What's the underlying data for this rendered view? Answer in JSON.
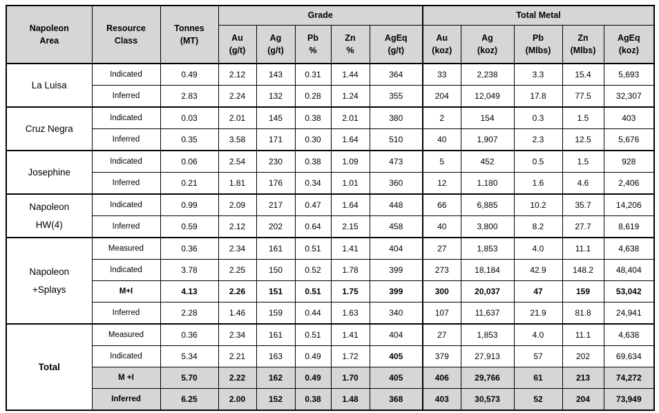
{
  "table": {
    "header": {
      "area": "Napoleon\nArea",
      "resource_class": "Resource\nClass",
      "tonnes": "Tonnes\n(MT)",
      "grade_group": "Grade",
      "total_metal_group": "Total Metal",
      "grade_cols": [
        "Au\n(g/t)",
        "Ag\n(g/t)",
        "Pb\n%",
        "Zn\n%",
        "AgEq\n(g/t)"
      ],
      "metal_cols": [
        "Au\n(koz)",
        "Ag\n(koz)",
        "Pb\n(Mlbs)",
        "Zn\n(Mlbs)",
        "AgEq\n(koz)"
      ]
    },
    "colors": {
      "header_bg": "#d6d6d6",
      "shaded_row_bg": "#d6d6d6",
      "border": "#000000",
      "text": "#000000"
    },
    "groups": [
      {
        "area": "La Luisa",
        "bold": false,
        "rows": [
          {
            "class": "Indicated",
            "bold": false,
            "shaded": false,
            "values": [
              "0.49",
              "2.12",
              "143",
              "0.31",
              "1.44",
              "364",
              "33",
              "2,238",
              "3.3",
              "15.4",
              "5,693"
            ]
          },
          {
            "class": "Inferred",
            "bold": false,
            "shaded": false,
            "values": [
              "2.83",
              "2.24",
              "132",
              "0.28",
              "1.24",
              "355",
              "204",
              "12,049",
              "17.8",
              "77.5",
              "32,307"
            ]
          }
        ]
      },
      {
        "area": "Cruz Negra",
        "bold": false,
        "rows": [
          {
            "class": "Indicated",
            "bold": false,
            "shaded": false,
            "values": [
              "0.03",
              "2.01",
              "145",
              "0.38",
              "2.01",
              "380",
              "2",
              "154",
              "0.3",
              "1.5",
              "403"
            ]
          },
          {
            "class": "Inferred",
            "bold": false,
            "shaded": false,
            "values": [
              "0.35",
              "3.58",
              "171",
              "0.30",
              "1.64",
              "510",
              "40",
              "1,907",
              "2.3",
              "12.5",
              "5,676"
            ]
          }
        ]
      },
      {
        "area": "Josephine",
        "bold": false,
        "rows": [
          {
            "class": "Indicated",
            "bold": false,
            "shaded": false,
            "values": [
              "0.06",
              "2.54",
              "230",
              "0.38",
              "1.09",
              "473",
              "5",
              "452",
              "0.5",
              "1.5",
              "928"
            ]
          },
          {
            "class": "Inferred",
            "bold": false,
            "shaded": false,
            "values": [
              "0.21",
              "1.81",
              "176",
              "0.34",
              "1.01",
              "360",
              "12",
              "1,180",
              "1.6",
              "4.6",
              "2,406"
            ]
          }
        ]
      },
      {
        "area": "Napoleon\nHW(4)",
        "bold": false,
        "rows": [
          {
            "class": "Indicated",
            "bold": false,
            "shaded": false,
            "values": [
              "0.99",
              "2.09",
              "217",
              "0.47",
              "1.64",
              "448",
              "66",
              "6,885",
              "10.2",
              "35.7",
              "14,206"
            ]
          },
          {
            "class": "Inferred",
            "bold": false,
            "shaded": false,
            "values": [
              "0.59",
              "2.12",
              "202",
              "0.64",
              "2.15",
              "458",
              "40",
              "3,800",
              "8.2",
              "27.7",
              "8,619"
            ]
          }
        ]
      },
      {
        "area": "Napoleon\n+Splays",
        "bold": false,
        "rows": [
          {
            "class": "Measured",
            "bold": false,
            "shaded": false,
            "values": [
              "0.36",
              "2.34",
              "161",
              "0.51",
              "1.41",
              "404",
              "27",
              "1,853",
              "4.0",
              "11.1",
              "4,638"
            ]
          },
          {
            "class": "Indicated",
            "bold": false,
            "shaded": false,
            "values": [
              "3.78",
              "2.25",
              "150",
              "0.52",
              "1.78",
              "399",
              "273",
              "18,184",
              "42.9",
              "148.2",
              "48,404"
            ]
          },
          {
            "class": "M+I",
            "bold": true,
            "shaded": false,
            "values": [
              "4.13",
              "2.26",
              "151",
              "0.51",
              "1.75",
              "399",
              "300",
              "20,037",
              "47",
              "159",
              "53,042"
            ]
          },
          {
            "class": "Inferred",
            "bold": false,
            "shaded": false,
            "values": [
              "2.28",
              "1.46",
              "159",
              "0.44",
              "1.63",
              "340",
              "107",
              "11,637",
              "21.9",
              "81.8",
              "24,941"
            ]
          }
        ]
      },
      {
        "area": "Total",
        "bold": true,
        "rows": [
          {
            "class": "Measured",
            "bold": false,
            "shaded": false,
            "values": [
              "0.36",
              "2.34",
              "161",
              "0.51",
              "1.41",
              "404",
              "27",
              "1,853",
              "4.0",
              "11.1",
              "4,638"
            ]
          },
          {
            "class": "Indicated",
            "bold": false,
            "shaded": false,
            "bold_cells": [
              5
            ],
            "values": [
              "5.34",
              "2.21",
              "163",
              "0.49",
              "1.72",
              "405",
              "379",
              "27,913",
              "57",
              "202",
              "69,634"
            ]
          },
          {
            "class": "M +I",
            "bold": true,
            "shaded": true,
            "values": [
              "5.70",
              "2.22",
              "162",
              "0.49",
              "1.70",
              "405",
              "406",
              "29,766",
              "61",
              "213",
              "74,272"
            ]
          },
          {
            "class": "Inferred",
            "bold": true,
            "shaded": true,
            "values": [
              "6.25",
              "2.00",
              "152",
              "0.38",
              "1.48",
              "368",
              "403",
              "30,573",
              "52",
              "204",
              "73,949"
            ]
          }
        ]
      }
    ]
  }
}
